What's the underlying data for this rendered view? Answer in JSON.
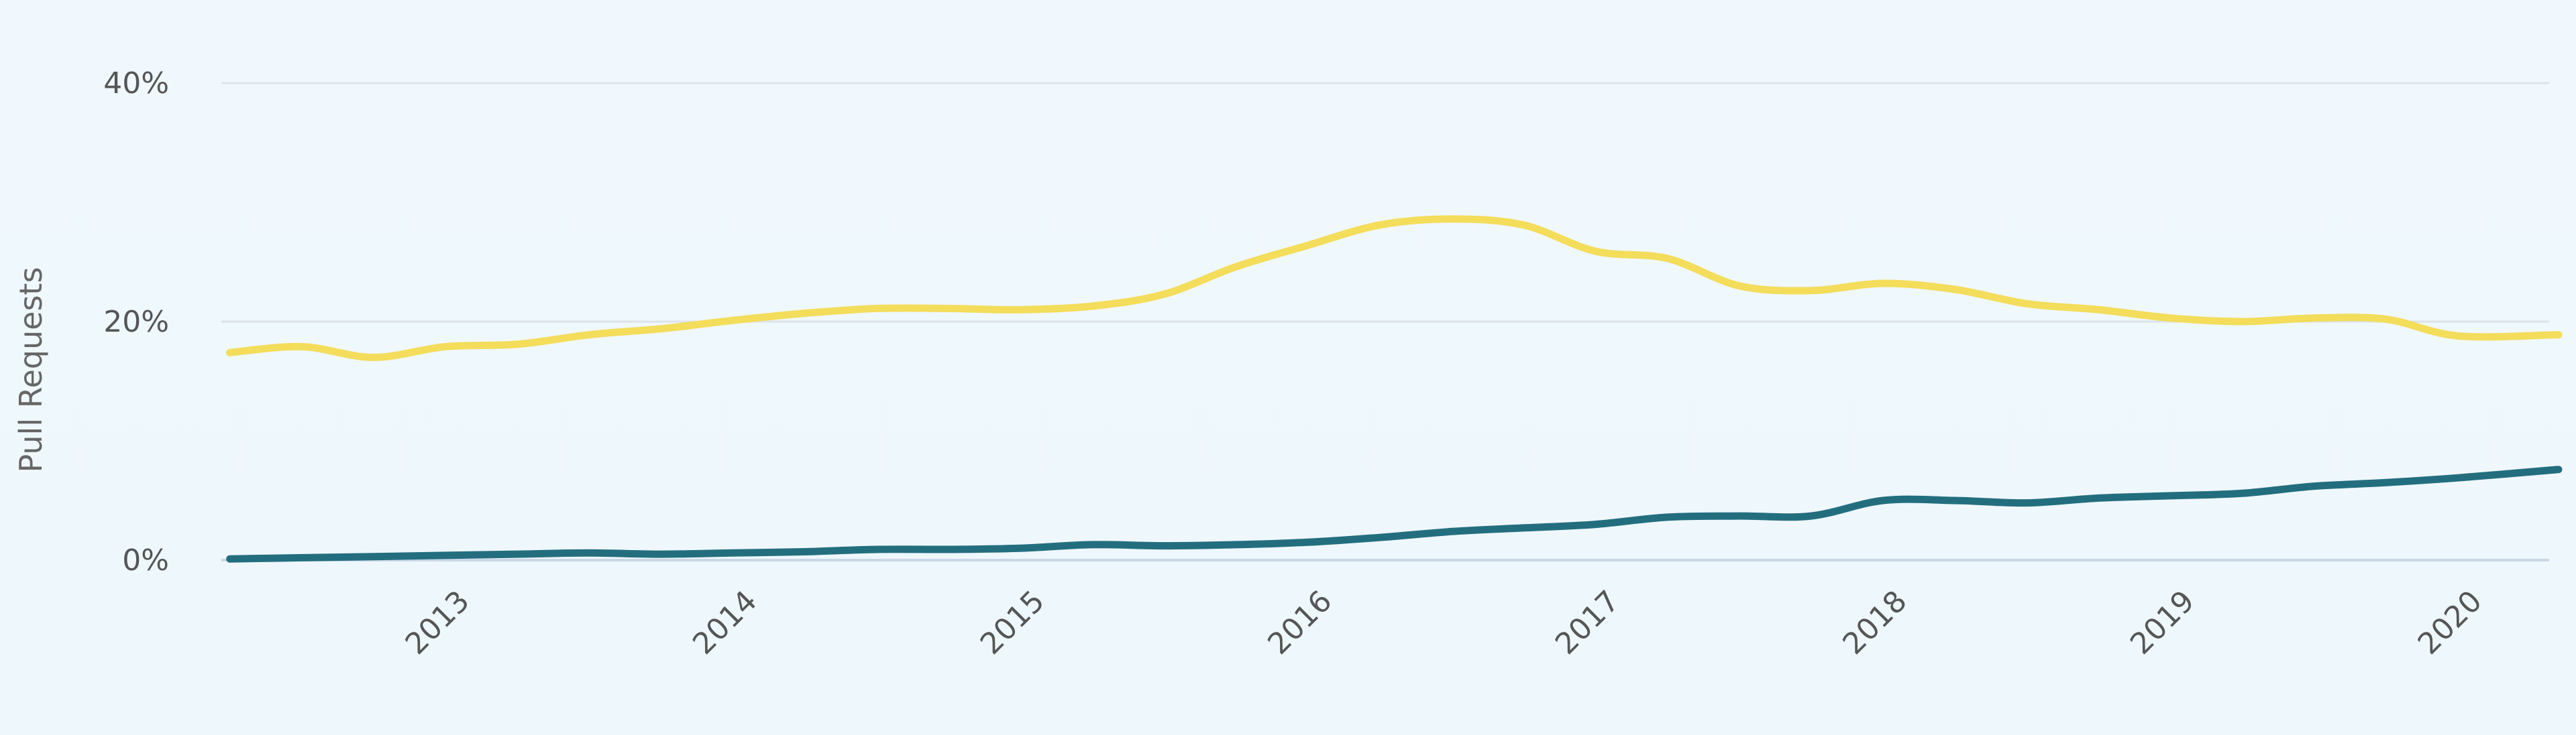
{
  "chart_data": {
    "type": "line",
    "title": "",
    "xlabel": "",
    "ylabel": "Pull Requests",
    "ylim": [
      0,
      40
    ],
    "xlim": [
      2012.2,
      2020.5
    ],
    "y_ticks": [
      {
        "value": 0,
        "label": "0%"
      },
      {
        "value": 20,
        "label": "20%"
      },
      {
        "value": 40,
        "label": "40%"
      }
    ],
    "x_ticks": [
      {
        "value": 2013,
        "label": "2013"
      },
      {
        "value": 2014,
        "label": "2014"
      },
      {
        "value": 2015,
        "label": "2015"
      },
      {
        "value": 2016,
        "label": "2016"
      },
      {
        "value": 2017,
        "label": "2017"
      },
      {
        "value": 2018,
        "label": "2018"
      },
      {
        "value": 2019,
        "label": "2019"
      },
      {
        "value": 2020,
        "label": "2020"
      }
    ],
    "grid": true,
    "legend": "none",
    "series": [
      {
        "color": "#f3dd5a",
        "x": [
          2012.25,
          2012.5,
          2012.75,
          2013.0,
          2013.25,
          2013.5,
          2013.75,
          2014.0,
          2014.25,
          2014.5,
          2014.75,
          2015.0,
          2015.25,
          2015.5,
          2015.75,
          2016.0,
          2016.25,
          2016.5,
          2016.75,
          2017.0,
          2017.25,
          2017.5,
          2017.75,
          2018.0,
          2018.25,
          2018.5,
          2018.75,
          2019.0,
          2019.25,
          2019.5,
          2019.75,
          2020.0,
          2020.35
        ],
        "values": [
          17.4,
          17.9,
          17.0,
          17.9,
          18.1,
          18.9,
          19.4,
          20.1,
          20.7,
          21.1,
          21.1,
          21.0,
          21.3,
          22.3,
          24.6,
          26.4,
          28.1,
          28.6,
          28.1,
          25.9,
          25.3,
          23.0,
          22.6,
          23.2,
          22.7,
          21.5,
          21.0,
          20.3,
          20.0,
          20.3,
          20.2,
          18.8,
          18.9
        ]
      },
      {
        "color": "#236e7e",
        "x": [
          2012.25,
          2012.5,
          2012.75,
          2013.0,
          2013.25,
          2013.5,
          2013.75,
          2014.0,
          2014.25,
          2014.5,
          2014.75,
          2015.0,
          2015.25,
          2015.5,
          2015.75,
          2016.0,
          2016.25,
          2016.5,
          2016.75,
          2017.0,
          2017.25,
          2017.5,
          2017.75,
          2018.0,
          2018.25,
          2018.5,
          2018.75,
          2019.0,
          2019.25,
          2019.5,
          2019.75,
          2020.0,
          2020.35
        ],
        "values": [
          0.1,
          0.2,
          0.3,
          0.4,
          0.5,
          0.6,
          0.5,
          0.6,
          0.7,
          0.9,
          0.9,
          1.0,
          1.3,
          1.2,
          1.3,
          1.5,
          1.9,
          2.4,
          2.7,
          3.0,
          3.6,
          3.7,
          3.7,
          5.0,
          5.0,
          4.8,
          5.2,
          5.4,
          5.6,
          6.2,
          6.5,
          6.9,
          7.6
        ]
      }
    ]
  }
}
